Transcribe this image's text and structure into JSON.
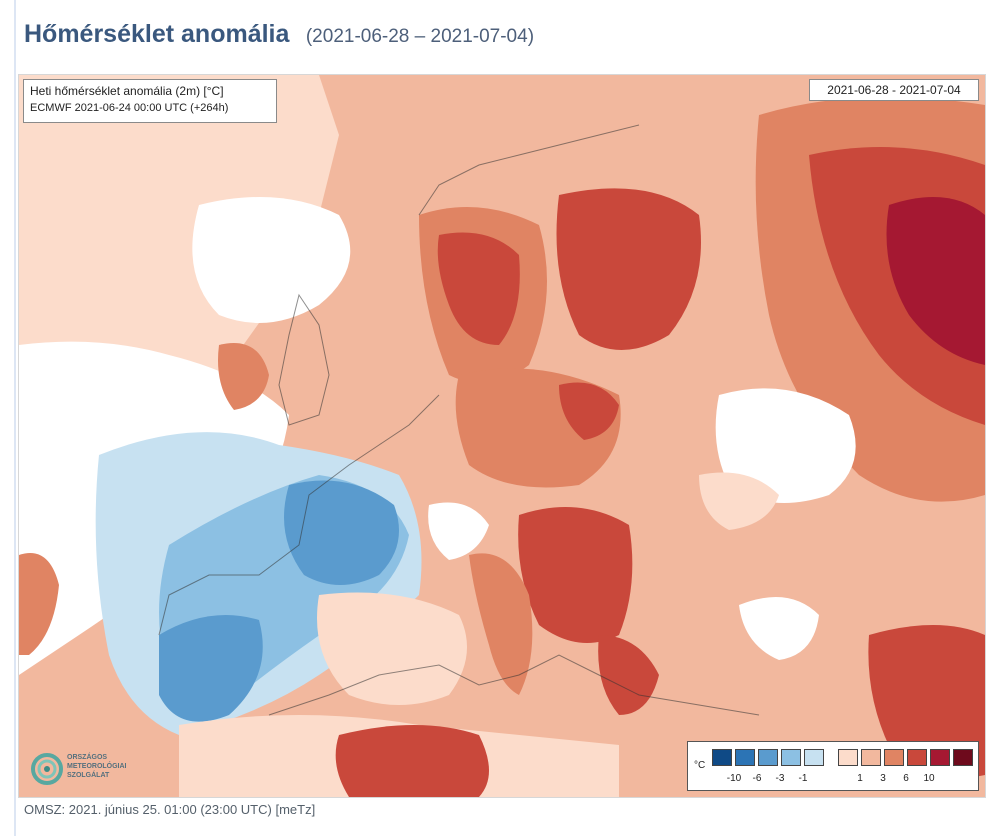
{
  "header": {
    "title": "Hőmérséklet anomália",
    "date_range": "(2021-06-28 – 2021-07-04)"
  },
  "map": {
    "info_line1": "Heti hőmérséklet anomália (2m) [°C]",
    "info_line2": "ECMWF 2021-06-24 00:00 UTC (+264h)",
    "date_box": "2021-06-28 - 2021-07-04",
    "colors": {
      "cold_strong": "#0f4a86",
      "cold_1": "#2c74b5",
      "cold_2": "#5a9bce",
      "cold_3": "#8cc0e3",
      "cold_4": "#c7e1f1",
      "neutral": "#ffffff",
      "warm_1": "#fcdccb",
      "warm_2": "#f2b89e",
      "warm_3": "#e08463",
      "warm_4": "#c9483b",
      "warm_5": "#a51832",
      "warm_6": "#6e0a1c"
    }
  },
  "legend": {
    "unit": "°C",
    "cold_ticks": [
      "-10",
      "-6",
      "-3",
      "-1"
    ],
    "warm_ticks": [
      "1",
      "3",
      "6",
      "10"
    ]
  },
  "logo": {
    "line1": "ORSZÁGOS",
    "line2": "METEOROLÓGIAI",
    "line3": "SZOLGÁLAT"
  },
  "footer": {
    "text": "OMSZ: 2021. június 25. 01:00 (23:00  UTC)  [meTz]"
  }
}
